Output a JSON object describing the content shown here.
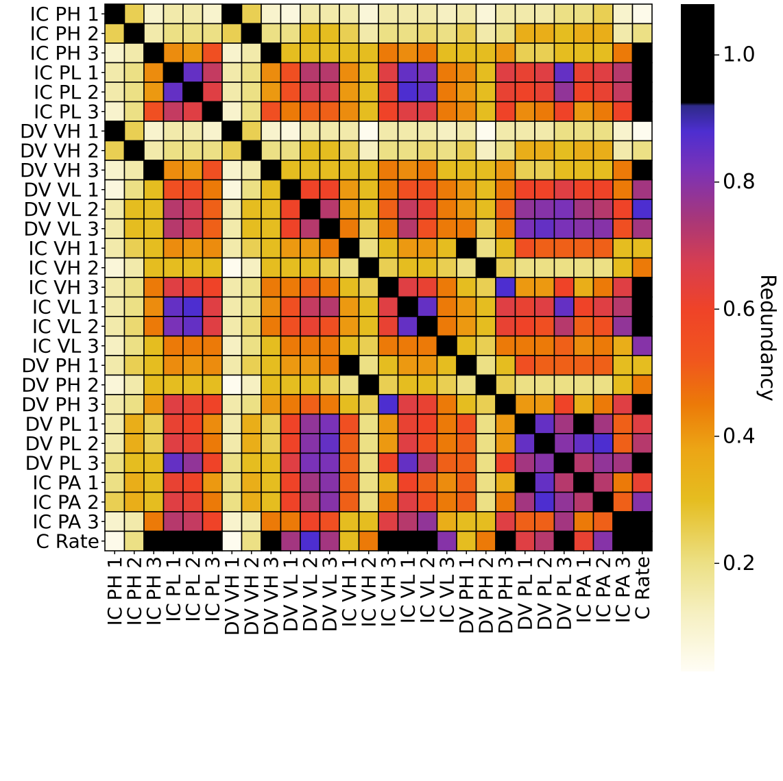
{
  "chart_data": {
    "type": "heatmap",
    "title": "",
    "xlabel": "",
    "ylabel": "",
    "colorbar_label": "Redundancy",
    "colorbar_ticks": [
      0.2,
      0.4,
      0.6,
      0.8,
      1.0
    ],
    "colorbar_tick_labels": [
      "0.2",
      "0.4",
      "0.6",
      "0.8",
      "1.0"
    ],
    "colorbar_range": [
      0.03,
      1.08
    ],
    "colormap_stops": [
      {
        "v": 0.03,
        "color": "#fffdf5"
      },
      {
        "v": 0.12,
        "color": "#f6f0c2"
      },
      {
        "v": 0.2,
        "color": "#ece085"
      },
      {
        "v": 0.3,
        "color": "#e5bd20"
      },
      {
        "v": 0.38,
        "color": "#eca515"
      },
      {
        "v": 0.45,
        "color": "#ec7a08"
      },
      {
        "v": 0.52,
        "color": "#f0561e"
      },
      {
        "v": 0.6,
        "color": "#ef4328"
      },
      {
        "v": 0.67,
        "color": "#d83e4f"
      },
      {
        "v": 0.74,
        "color": "#a93778"
      },
      {
        "v": 0.82,
        "color": "#7a32b8"
      },
      {
        "v": 0.88,
        "color": "#4d2ed0"
      },
      {
        "v": 0.92,
        "color": "#2e2a88"
      },
      {
        "v": 0.925,
        "color": "#000000"
      },
      {
        "v": 1.08,
        "color": "#000000"
      }
    ],
    "row_labels": [
      "IC PH 1",
      "IC PH 2",
      "IC PH 3",
      "IC PL 1",
      "IC PL 2",
      "IC PL 3",
      "DV VH 1",
      "DV VH 2",
      "DV VH 3",
      "DV VL 1",
      "DV VL 2",
      "DV VL 3",
      "IC VH 1",
      "IC VH 2",
      "IC VH 3",
      "IC VL 1",
      "IC VL 2",
      "IC VL 3",
      "DV PH 1",
      "DV PH 2",
      "DV PH 3",
      "DV PL 1",
      "DV PL 2",
      "DV PL 3",
      "IC PA 1",
      "IC PA 2",
      "IC PA 3",
      "C Rate"
    ],
    "col_labels": [
      "IC PH 1",
      "IC PH 2",
      "IC PH 3",
      "IC PL 1",
      "IC PL 2",
      "IC PL 3",
      "DV VH 1",
      "DV VH 2",
      "DV VH 3",
      "DV VL 1",
      "DV VL 2",
      "DV VL 3",
      "IC VH 1",
      "IC VH 2",
      "IC VH 3",
      "IC VL 1",
      "IC VL 2",
      "IC VL 3",
      "DV PH 1",
      "DV PH 2",
      "DV PH 3",
      "DV PL 1",
      "DV PL 2",
      "DV PL 3",
      "IC PA 1",
      "IC PA 2",
      "IC PA 3",
      "C Rate"
    ],
    "values": [
      [
        1.0,
        0.25,
        0.1,
        0.15,
        0.15,
        0.1,
        1.0,
        0.25,
        0.1,
        0.07,
        0.15,
        0.15,
        0.15,
        0.08,
        0.15,
        0.15,
        0.15,
        0.12,
        0.15,
        0.08,
        0.15,
        0.15,
        0.15,
        0.2,
        0.2,
        0.25,
        0.1,
        0.05
      ],
      [
        0.25,
        1.0,
        0.15,
        0.2,
        0.2,
        0.2,
        0.25,
        1.0,
        0.2,
        0.2,
        0.3,
        0.3,
        0.25,
        0.15,
        0.2,
        0.2,
        0.22,
        0.2,
        0.25,
        0.15,
        0.2,
        0.35,
        0.35,
        0.3,
        0.35,
        0.35,
        0.15,
        0.2
      ],
      [
        0.1,
        0.15,
        1.0,
        0.42,
        0.4,
        0.55,
        0.1,
        0.15,
        1.0,
        0.3,
        0.3,
        0.3,
        0.3,
        0.3,
        0.45,
        0.42,
        0.45,
        0.3,
        0.3,
        0.3,
        0.4,
        0.25,
        0.25,
        0.3,
        0.3,
        0.3,
        0.45,
        1.0
      ],
      [
        0.15,
        0.2,
        0.42,
        1.0,
        0.85,
        0.7,
        0.15,
        0.2,
        0.42,
        0.55,
        0.72,
        0.72,
        0.42,
        0.3,
        0.65,
        0.85,
        0.82,
        0.45,
        0.42,
        0.3,
        0.65,
        0.62,
        0.65,
        0.85,
        0.62,
        0.65,
        0.72,
        1.0
      ],
      [
        0.15,
        0.2,
        0.4,
        0.85,
        1.0,
        0.65,
        0.15,
        0.2,
        0.4,
        0.55,
        0.68,
        0.68,
        0.4,
        0.3,
        0.62,
        0.88,
        0.85,
        0.45,
        0.4,
        0.3,
        0.62,
        0.6,
        0.62,
        0.78,
        0.6,
        0.62,
        0.7,
        1.0
      ],
      [
        0.1,
        0.2,
        0.55,
        0.7,
        0.65,
        1.0,
        0.1,
        0.2,
        0.55,
        0.45,
        0.5,
        0.5,
        0.42,
        0.3,
        0.6,
        0.65,
        0.65,
        0.45,
        0.42,
        0.3,
        0.6,
        0.42,
        0.45,
        0.6,
        0.4,
        0.45,
        0.6,
        1.0
      ],
      [
        1.0,
        0.25,
        0.1,
        0.15,
        0.15,
        0.1,
        1.0,
        0.25,
        0.1,
        0.07,
        0.15,
        0.15,
        0.15,
        0.04,
        0.15,
        0.15,
        0.15,
        0.12,
        0.15,
        0.04,
        0.15,
        0.15,
        0.15,
        0.2,
        0.2,
        0.2,
        0.1,
        0.04
      ],
      [
        0.25,
        1.0,
        0.15,
        0.2,
        0.2,
        0.2,
        0.25,
        1.0,
        0.2,
        0.2,
        0.3,
        0.3,
        0.25,
        0.12,
        0.2,
        0.2,
        0.22,
        0.2,
        0.25,
        0.12,
        0.2,
        0.35,
        0.35,
        0.3,
        0.35,
        0.35,
        0.15,
        0.2
      ],
      [
        0.1,
        0.15,
        1.0,
        0.42,
        0.4,
        0.55,
        0.1,
        0.15,
        1.0,
        0.3,
        0.3,
        0.3,
        0.3,
        0.3,
        0.45,
        0.42,
        0.45,
        0.3,
        0.3,
        0.3,
        0.4,
        0.25,
        0.25,
        0.3,
        0.3,
        0.3,
        0.45,
        1.0
      ],
      [
        0.07,
        0.2,
        0.3,
        0.55,
        0.55,
        0.45,
        0.07,
        0.2,
        0.3,
        1.0,
        0.6,
        0.6,
        0.4,
        0.3,
        0.45,
        0.55,
        0.55,
        0.45,
        0.4,
        0.3,
        0.45,
        0.6,
        0.6,
        0.65,
        0.6,
        0.6,
        0.45,
        0.75
      ],
      [
        0.15,
        0.3,
        0.3,
        0.72,
        0.68,
        0.5,
        0.15,
        0.3,
        0.3,
        0.6,
        1.0,
        0.72,
        0.4,
        0.3,
        0.5,
        0.7,
        0.62,
        0.45,
        0.4,
        0.3,
        0.5,
        0.78,
        0.8,
        0.82,
        0.75,
        0.72,
        0.6,
        0.88
      ],
      [
        0.15,
        0.3,
        0.3,
        0.72,
        0.68,
        0.5,
        0.15,
        0.3,
        0.3,
        0.6,
        0.72,
        1.0,
        0.45,
        0.25,
        0.45,
        0.72,
        0.55,
        0.45,
        0.45,
        0.25,
        0.45,
        0.82,
        0.85,
        0.82,
        0.8,
        0.8,
        0.55,
        0.75
      ],
      [
        0.15,
        0.25,
        0.3,
        0.42,
        0.4,
        0.42,
        0.15,
        0.25,
        0.3,
        0.4,
        0.4,
        0.45,
        1.0,
        0.2,
        0.3,
        0.4,
        0.4,
        0.3,
        1.0,
        0.2,
        0.3,
        0.55,
        0.5,
        0.5,
        0.5,
        0.5,
        0.3,
        0.3
      ],
      [
        0.08,
        0.15,
        0.3,
        0.3,
        0.3,
        0.3,
        0.04,
        0.12,
        0.3,
        0.3,
        0.3,
        0.25,
        0.2,
        1.0,
        0.25,
        0.3,
        0.3,
        0.25,
        0.2,
        1.0,
        0.25,
        0.2,
        0.2,
        0.2,
        0.2,
        0.2,
        0.3,
        0.45
      ],
      [
        0.15,
        0.2,
        0.45,
        0.65,
        0.62,
        0.6,
        0.15,
        0.2,
        0.45,
        0.45,
        0.5,
        0.45,
        0.3,
        0.25,
        1.0,
        0.65,
        0.62,
        0.45,
        0.3,
        0.25,
        0.88,
        0.4,
        0.4,
        0.6,
        0.35,
        0.45,
        0.65,
        1.0
      ],
      [
        0.15,
        0.2,
        0.42,
        0.85,
        0.88,
        0.65,
        0.15,
        0.2,
        0.42,
        0.55,
        0.7,
        0.72,
        0.4,
        0.3,
        0.65,
        1.0,
        0.85,
        0.45,
        0.4,
        0.3,
        0.65,
        0.62,
        0.65,
        0.85,
        0.6,
        0.65,
        0.72,
        1.0
      ],
      [
        0.15,
        0.22,
        0.45,
        0.82,
        0.85,
        0.65,
        0.15,
        0.22,
        0.45,
        0.55,
        0.62,
        0.55,
        0.4,
        0.3,
        0.62,
        0.85,
        1.0,
        0.45,
        0.4,
        0.3,
        0.62,
        0.6,
        0.55,
        0.72,
        0.5,
        0.55,
        0.78,
        1.0
      ],
      [
        0.12,
        0.2,
        0.3,
        0.45,
        0.45,
        0.45,
        0.12,
        0.2,
        0.3,
        0.45,
        0.45,
        0.45,
        0.3,
        0.25,
        0.45,
        0.45,
        0.45,
        1.0,
        0.3,
        0.25,
        0.45,
        0.45,
        0.45,
        0.5,
        0.42,
        0.45,
        0.35,
        0.8
      ],
      [
        0.15,
        0.25,
        0.3,
        0.42,
        0.4,
        0.42,
        0.15,
        0.25,
        0.3,
        0.4,
        0.4,
        0.45,
        1.0,
        0.2,
        0.3,
        0.4,
        0.4,
        0.3,
        1.0,
        0.2,
        0.3,
        0.55,
        0.5,
        0.5,
        0.5,
        0.5,
        0.3,
        0.3
      ],
      [
        0.08,
        0.15,
        0.3,
        0.3,
        0.3,
        0.3,
        0.04,
        0.12,
        0.3,
        0.3,
        0.3,
        0.25,
        0.2,
        1.0,
        0.25,
        0.3,
        0.3,
        0.25,
        0.2,
        1.0,
        0.25,
        0.2,
        0.2,
        0.2,
        0.2,
        0.2,
        0.3,
        0.45
      ],
      [
        0.15,
        0.2,
        0.4,
        0.65,
        0.62,
        0.6,
        0.15,
        0.2,
        0.4,
        0.45,
        0.5,
        0.45,
        0.3,
        0.25,
        0.88,
        0.65,
        0.62,
        0.45,
        0.3,
        0.25,
        1.0,
        0.4,
        0.4,
        0.6,
        0.35,
        0.45,
        0.65,
        1.0
      ],
      [
        0.15,
        0.35,
        0.25,
        0.62,
        0.6,
        0.42,
        0.15,
        0.35,
        0.25,
        0.6,
        0.78,
        0.82,
        0.55,
        0.2,
        0.4,
        0.62,
        0.6,
        0.45,
        0.55,
        0.2,
        0.4,
        1.0,
        0.85,
        0.75,
        1.0,
        0.75,
        0.5,
        0.65
      ],
      [
        0.15,
        0.35,
        0.25,
        0.65,
        0.62,
        0.45,
        0.15,
        0.35,
        0.25,
        0.6,
        0.8,
        0.85,
        0.5,
        0.2,
        0.4,
        0.65,
        0.55,
        0.45,
        0.5,
        0.2,
        0.4,
        0.85,
        1.0,
        0.8,
        0.85,
        0.88,
        0.5,
        0.72
      ],
      [
        0.2,
        0.3,
        0.3,
        0.85,
        0.78,
        0.6,
        0.2,
        0.3,
        0.3,
        0.65,
        0.82,
        0.82,
        0.5,
        0.2,
        0.6,
        0.85,
        0.72,
        0.5,
        0.5,
        0.2,
        0.6,
        0.75,
        0.8,
        1.0,
        0.72,
        0.78,
        0.75,
        1.0
      ],
      [
        0.2,
        0.35,
        0.3,
        0.62,
        0.6,
        0.4,
        0.2,
        0.35,
        0.3,
        0.6,
        0.75,
        0.8,
        0.5,
        0.2,
        0.35,
        0.6,
        0.5,
        0.42,
        0.5,
        0.2,
        0.35,
        1.0,
        0.85,
        0.72,
        1.0,
        0.72,
        0.45,
        0.62
      ],
      [
        0.25,
        0.35,
        0.3,
        0.65,
        0.62,
        0.45,
        0.2,
        0.35,
        0.3,
        0.6,
        0.72,
        0.8,
        0.5,
        0.2,
        0.45,
        0.65,
        0.55,
        0.45,
        0.5,
        0.2,
        0.45,
        0.75,
        0.88,
        0.78,
        0.72,
        1.0,
        0.5,
        0.8
      ],
      [
        0.1,
        0.15,
        0.45,
        0.72,
        0.7,
        0.6,
        0.1,
        0.15,
        0.45,
        0.45,
        0.6,
        0.55,
        0.3,
        0.3,
        0.65,
        0.72,
        0.78,
        0.35,
        0.3,
        0.3,
        0.65,
        0.5,
        0.5,
        0.75,
        0.45,
        0.5,
        1.0,
        1.0
      ],
      [
        0.05,
        0.2,
        1.0,
        1.0,
        1.0,
        1.0,
        0.04,
        0.2,
        1.0,
        0.75,
        0.88,
        0.75,
        0.3,
        0.45,
        1.0,
        1.0,
        1.0,
        0.8,
        0.3,
        0.45,
        1.0,
        0.65,
        0.72,
        1.0,
        0.62,
        0.8,
        1.0,
        1.0
      ]
    ]
  }
}
